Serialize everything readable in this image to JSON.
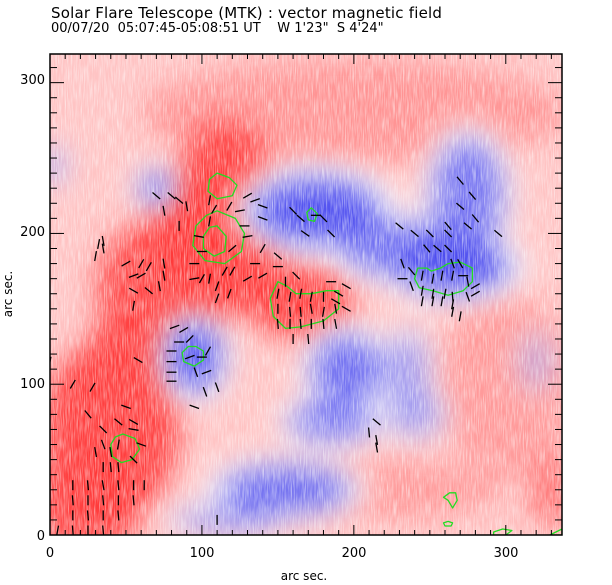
{
  "chart_data": {
    "type": "heatmap",
    "title": "Solar Flare Telescope (MTK) : vector magnetic field",
    "subtitle": {
      "date": "00/07/20",
      "time_range": "05:07:45-05:08:51 UT",
      "position_w": "W 1'23\"",
      "position_s": "S 4'24\""
    },
    "xlabel": "arc sec.",
    "ylabel": "arc sec.",
    "xlim": [
      0,
      337
    ],
    "ylim": [
      0,
      319
    ],
    "xticks": [
      0,
      100,
      200,
      300
    ],
    "yticks": [
      0,
      100,
      200,
      300
    ],
    "xtick_labels": [
      "0",
      "100",
      "200",
      "300"
    ],
    "ytick_labels": [
      "0",
      "100",
      "200",
      "300"
    ],
    "colormap": {
      "positive": "#ff3a3a",
      "negative": "#4a4aef",
      "zero": "#ffffff"
    },
    "contour_color": "#22dd22",
    "arrow_color": "#000000",
    "positive_regions": [
      {
        "cx": 110,
        "cy": 195,
        "rx": 45,
        "ry": 50,
        "strength": 1.0
      },
      {
        "cx": 75,
        "cy": 165,
        "rx": 45,
        "ry": 45,
        "strength": 0.85
      },
      {
        "cx": 115,
        "cy": 240,
        "rx": 30,
        "ry": 35,
        "strength": 0.9
      },
      {
        "cx": 165,
        "cy": 155,
        "rx": 35,
        "ry": 25,
        "strength": 0.95
      },
      {
        "cx": 40,
        "cy": 70,
        "rx": 45,
        "ry": 60,
        "strength": 0.95
      },
      {
        "cx": 25,
        "cy": 20,
        "rx": 35,
        "ry": 35,
        "strength": 0.9
      },
      {
        "cx": 60,
        "cy": 125,
        "rx": 35,
        "ry": 30,
        "strength": 0.75
      },
      {
        "cx": 330,
        "cy": 30,
        "rx": 15,
        "ry": 25,
        "strength": 0.6
      },
      {
        "cx": 200,
        "cy": 280,
        "rx": 140,
        "ry": 35,
        "strength": 0.35
      },
      {
        "cx": 300,
        "cy": 100,
        "rx": 45,
        "ry": 60,
        "strength": 0.3
      },
      {
        "cx": 220,
        "cy": 30,
        "rx": 80,
        "ry": 20,
        "strength": 0.3
      }
    ],
    "negative_regions": [
      {
        "cx": 175,
        "cy": 215,
        "rx": 45,
        "ry": 25,
        "strength": 0.95
      },
      {
        "cx": 265,
        "cy": 178,
        "rx": 40,
        "ry": 20,
        "strength": 1.0
      },
      {
        "cx": 230,
        "cy": 190,
        "rx": 40,
        "ry": 20,
        "strength": 0.75
      },
      {
        "cx": 275,
        "cy": 225,
        "rx": 25,
        "ry": 40,
        "strength": 0.75
      },
      {
        "cx": 95,
        "cy": 118,
        "rx": 20,
        "ry": 25,
        "strength": 0.95
      },
      {
        "cx": 70,
        "cy": 230,
        "rx": 12,
        "ry": 12,
        "strength": 0.8
      },
      {
        "cx": 195,
        "cy": 110,
        "rx": 25,
        "ry": 25,
        "strength": 0.8
      },
      {
        "cx": 185,
        "cy": 75,
        "rx": 30,
        "ry": 15,
        "strength": 0.7
      },
      {
        "cx": 155,
        "cy": 30,
        "rx": 45,
        "ry": 18,
        "strength": 0.8
      },
      {
        "cx": 115,
        "cy": 10,
        "rx": 35,
        "ry": 10,
        "strength": 0.5
      },
      {
        "cx": 235,
        "cy": 110,
        "rx": 15,
        "ry": 25,
        "strength": 0.5
      },
      {
        "cx": 240,
        "cy": 80,
        "rx": 20,
        "ry": 15,
        "strength": 0.5
      },
      {
        "cx": 2,
        "cy": 245,
        "rx": 8,
        "ry": 12,
        "strength": 0.5
      },
      {
        "cx": 320,
        "cy": 115,
        "rx": 12,
        "ry": 20,
        "strength": 0.3
      }
    ],
    "contours": [
      {
        "points": [
          [
            110,
            240
          ],
          [
            118,
            237
          ],
          [
            123,
            232
          ],
          [
            120,
            225
          ],
          [
            110,
            223
          ],
          [
            104,
            228
          ],
          [
            105,
            236
          ]
        ]
      },
      {
        "points": [
          [
            110,
            215
          ],
          [
            122,
            210
          ],
          [
            128,
            200
          ],
          [
            126,
            188
          ],
          [
            115,
            180
          ],
          [
            102,
            182
          ],
          [
            94,
            192
          ],
          [
            96,
            205
          ],
          [
            103,
            212
          ]
        ]
      },
      {
        "points": [
          [
            110,
            205
          ],
          [
            116,
            198
          ],
          [
            115,
            188
          ],
          [
            108,
            185
          ],
          [
            101,
            190
          ],
          [
            101,
            198
          ],
          [
            105,
            204
          ]
        ]
      },
      {
        "points": [
          [
            150,
            168
          ],
          [
            156,
            165
          ],
          [
            162,
            160
          ],
          [
            172,
            160
          ],
          [
            182,
            162
          ],
          [
            190,
            162
          ],
          [
            190,
            150
          ],
          [
            180,
            142
          ],
          [
            165,
            138
          ],
          [
            155,
            137
          ],
          [
            147,
            145
          ],
          [
            145,
            157
          ]
        ]
      },
      {
        "points": [
          [
            172,
            217
          ],
          [
            176,
            213
          ],
          [
            174,
            208
          ],
          [
            170,
            209
          ],
          [
            169,
            214
          ]
        ]
      },
      {
        "points": [
          [
            242,
            177
          ],
          [
            248,
            177
          ],
          [
            251,
            175
          ],
          [
            257,
            177
          ],
          [
            262,
            180
          ],
          [
            270,
            181
          ],
          [
            278,
            177
          ],
          [
            278,
            168
          ],
          [
            272,
            162
          ],
          [
            262,
            159
          ],
          [
            252,
            162
          ],
          [
            243,
            164
          ],
          [
            240,
            170
          ]
        ]
      },
      {
        "points": [
          [
            96,
            125
          ],
          [
            101,
            122
          ],
          [
            101,
            116
          ],
          [
            95,
            112
          ],
          [
            88,
            115
          ],
          [
            87,
            121
          ],
          [
            91,
            125
          ]
        ]
      },
      {
        "points": [
          [
            48,
            67
          ],
          [
            56,
            64
          ],
          [
            59,
            57
          ],
          [
            54,
            50
          ],
          [
            47,
            48
          ],
          [
            41,
            52
          ],
          [
            40,
            60
          ],
          [
            43,
            65
          ]
        ]
      },
      {
        "points": [
          [
            263,
            28
          ],
          [
            267,
            28
          ],
          [
            268,
            23
          ],
          [
            265,
            18
          ],
          [
            262,
            23
          ],
          [
            259,
            25
          ]
        ]
      },
      {
        "points": [
          [
            262,
            9
          ],
          [
            265,
            8
          ],
          [
            264,
            6
          ],
          [
            260,
            6
          ],
          [
            259,
            8
          ]
        ]
      },
      {
        "points": [
          [
            292,
            2
          ],
          [
            298,
            4
          ],
          [
            304,
            3
          ],
          [
            300,
            0
          ],
          [
            292,
            0
          ]
        ]
      },
      {
        "points": [
          [
            329,
            0
          ],
          [
            333,
            2
          ],
          [
            337,
            4
          ],
          [
            337,
            0
          ]
        ]
      }
    ],
    "vectors": [
      [
        15,
        33,
        90
      ],
      [
        25,
        33,
        95
      ],
      [
        35,
        33,
        100
      ],
      [
        45,
        33,
        95
      ],
      [
        55,
        33,
        90
      ],
      [
        62,
        33,
        90
      ],
      [
        15,
        23,
        95
      ],
      [
        25,
        23,
        90
      ],
      [
        35,
        23,
        95
      ],
      [
        45,
        23,
        90
      ],
      [
        55,
        23,
        95
      ],
      [
        15,
        13,
        90
      ],
      [
        25,
        13,
        95
      ],
      [
        35,
        13,
        90
      ],
      [
        45,
        13,
        95
      ],
      [
        5,
        3,
        80
      ],
      [
        15,
        3,
        95
      ],
      [
        25,
        3,
        90
      ],
      [
        35,
        3,
        95
      ],
      [
        35,
        60,
        110
      ],
      [
        35,
        70,
        135
      ],
      [
        45,
        75,
        140
      ],
      [
        55,
        75,
        150
      ],
      [
        55,
        70,
        170
      ],
      [
        60,
        60,
        160
      ],
      [
        55,
        50,
        135
      ],
      [
        30,
        55,
        100
      ],
      [
        35,
        45,
        90
      ],
      [
        40,
        45,
        95
      ],
      [
        45,
        45,
        95
      ],
      [
        40,
        55,
        100
      ],
      [
        45,
        60,
        80
      ],
      [
        25,
        80,
        130
      ],
      [
        50,
        85,
        160
      ],
      [
        95,
        85,
        160
      ],
      [
        110,
        10,
        90
      ],
      [
        82,
        138,
        200
      ],
      [
        88,
        136,
        210
      ],
      [
        92,
        130,
        225
      ],
      [
        85,
        128,
        180
      ],
      [
        80,
        122,
        180
      ],
      [
        80,
        115,
        180
      ],
      [
        80,
        108,
        180
      ],
      [
        80,
        102,
        180
      ],
      [
        92,
        118,
        200
      ],
      [
        100,
        118,
        0
      ],
      [
        104,
        122,
        240
      ],
      [
        96,
        108,
        110
      ],
      [
        103,
        108,
        200
      ],
      [
        102,
        95,
        110
      ],
      [
        110,
        98,
        110
      ],
      [
        58,
        116,
        150
      ],
      [
        15,
        100,
        60
      ],
      [
        28,
        98,
        60
      ],
      [
        0,
        115,
        80
      ],
      [
        105,
        222,
        80
      ],
      [
        108,
        216,
        60
      ],
      [
        118,
        218,
        60
      ],
      [
        130,
        225,
        30
      ],
      [
        135,
        222,
        20
      ],
      [
        140,
        218,
        340
      ],
      [
        125,
        215,
        10
      ],
      [
        128,
        205,
        0
      ],
      [
        140,
        210,
        340
      ],
      [
        130,
        198,
        10
      ],
      [
        140,
        190,
        60
      ],
      [
        150,
        185,
        140
      ],
      [
        150,
        178,
        0
      ],
      [
        135,
        180,
        180
      ],
      [
        130,
        170,
        30
      ],
      [
        140,
        172,
        30
      ],
      [
        100,
        188,
        0
      ],
      [
        95,
        180,
        0
      ],
      [
        95,
        170,
        10
      ],
      [
        100,
        170,
        60
      ],
      [
        105,
        170,
        80
      ],
      [
        110,
        165,
        70
      ],
      [
        115,
        175,
        60
      ],
      [
        120,
        175,
        60
      ],
      [
        120,
        190,
        40
      ],
      [
        118,
        160,
        70
      ],
      [
        110,
        157,
        70
      ],
      [
        70,
        225,
        140
      ],
      [
        80,
        225,
        140
      ],
      [
        85,
        222,
        140
      ],
      [
        75,
        215,
        100
      ],
      [
        90,
        218,
        100
      ],
      [
        85,
        205,
        90
      ],
      [
        105,
        208,
        80
      ],
      [
        98,
        198,
        170
      ],
      [
        50,
        180,
        30
      ],
      [
        60,
        180,
        60
      ],
      [
        65,
        178,
        60
      ],
      [
        75,
        180,
        100
      ],
      [
        55,
        172,
        20
      ],
      [
        60,
        172,
        30
      ],
      [
        75,
        172,
        100
      ],
      [
        55,
        162,
        150
      ],
      [
        65,
        162,
        140
      ],
      [
        72,
        165,
        100
      ],
      [
        55,
        152,
        80
      ],
      [
        30,
        185,
        80
      ],
      [
        32,
        193,
        80
      ],
      [
        150,
        160,
        80
      ],
      [
        158,
        158,
        80
      ],
      [
        165,
        160,
        80
      ],
      [
        172,
        158,
        80
      ],
      [
        180,
        158,
        90
      ],
      [
        188,
        155,
        150
      ],
      [
        150,
        150,
        90
      ],
      [
        158,
        148,
        95
      ],
      [
        165,
        148,
        95
      ],
      [
        172,
        150,
        100
      ],
      [
        180,
        148,
        80
      ],
      [
        188,
        150,
        100
      ],
      [
        195,
        150,
        150
      ],
      [
        150,
        140,
        95
      ],
      [
        158,
        140,
        90
      ],
      [
        165,
        140,
        95
      ],
      [
        172,
        140,
        90
      ],
      [
        180,
        140,
        95
      ],
      [
        188,
        140,
        100
      ],
      [
        160,
        130,
        90
      ],
      [
        170,
        130,
        95
      ],
      [
        155,
        168,
        90
      ],
      [
        162,
        172,
        135
      ],
      [
        185,
        168,
        0
      ],
      [
        195,
        165,
        150
      ],
      [
        190,
        160,
        150
      ],
      [
        160,
        215,
        135
      ],
      [
        165,
        210,
        140
      ],
      [
        168,
        200,
        145
      ],
      [
        180,
        210,
        135
      ],
      [
        185,
        200,
        135
      ],
      [
        175,
        212,
        0
      ],
      [
        35,
        195,
        100
      ],
      [
        35,
        190,
        100
      ],
      [
        215,
        75,
        140
      ],
      [
        210,
        68,
        95
      ],
      [
        215,
        63,
        100
      ],
      [
        215,
        58,
        100
      ],
      [
        248,
        190,
        130
      ],
      [
        255,
        190,
        140
      ],
      [
        262,
        190,
        135
      ],
      [
        265,
        180,
        110
      ],
      [
        270,
        180,
        120
      ],
      [
        250,
        200,
        135
      ],
      [
        262,
        200,
        135
      ],
      [
        232,
        180,
        110
      ],
      [
        238,
        175,
        130
      ],
      [
        245,
        172,
        80
      ],
      [
        252,
        170,
        80
      ],
      [
        258,
        172,
        80
      ],
      [
        265,
        172,
        80
      ],
      [
        272,
        172,
        0
      ],
      [
        232,
        170,
        0
      ],
      [
        238,
        165,
        110
      ],
      [
        245,
        162,
        80
      ],
      [
        252,
        160,
        80
      ],
      [
        260,
        160,
        80
      ],
      [
        265,
        158,
        95
      ],
      [
        275,
        168,
        100
      ],
      [
        280,
        165,
        30
      ],
      [
        245,
        155,
        80
      ],
      [
        252,
        155,
        80
      ],
      [
        258,
        155,
        80
      ],
      [
        265,
        153,
        80
      ],
      [
        275,
        158,
        110
      ],
      [
        280,
        160,
        30
      ],
      [
        265,
        148,
        80
      ],
      [
        270,
        145,
        80
      ],
      [
        270,
        235,
        130
      ],
      [
        278,
        225,
        130
      ],
      [
        270,
        218,
        140
      ],
      [
        262,
        205,
        130
      ],
      [
        275,
        205,
        140
      ],
      [
        280,
        210,
        130
      ],
      [
        295,
        200,
        140
      ],
      [
        230,
        205,
        140
      ],
      [
        240,
        200,
        140
      ]
    ]
  }
}
